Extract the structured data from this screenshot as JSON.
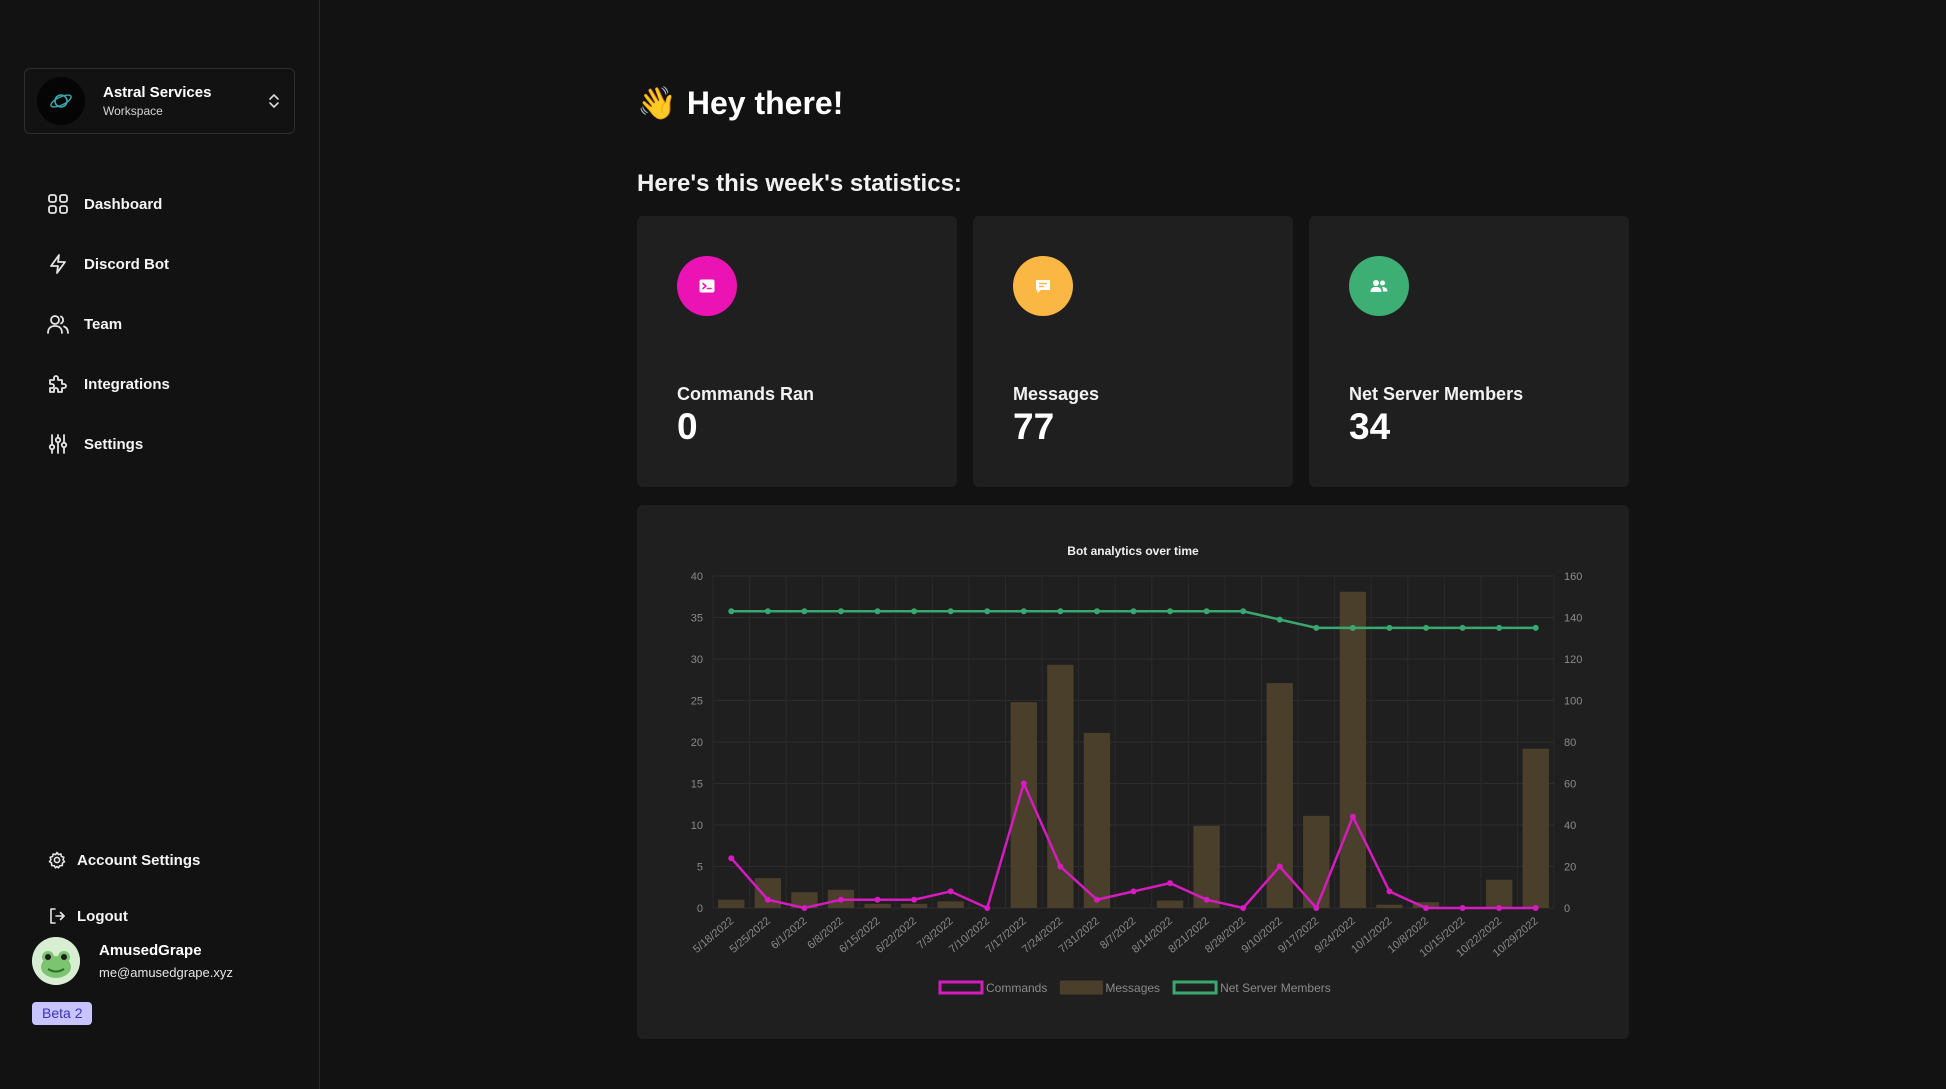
{
  "workspace": {
    "name": "Astral Services",
    "subtitle": "Workspace",
    "logo_icon": "planet-icon",
    "switch_icon": "chevron-updown-icon"
  },
  "nav": [
    {
      "label": "Dashboard",
      "icon": "grid-icon"
    },
    {
      "label": "Discord Bot",
      "icon": "bolt-icon"
    },
    {
      "label": "Team",
      "icon": "users-icon"
    },
    {
      "label": "Integrations",
      "icon": "puzzle-icon"
    },
    {
      "label": "Settings",
      "icon": "sliders-icon"
    }
  ],
  "account": {
    "settings_label": "Account Settings",
    "logout_label": "Logout"
  },
  "user": {
    "name": "AmusedGrape",
    "email": "me@amusedgrape.xyz",
    "badge": "Beta 2"
  },
  "main": {
    "greeting_emoji": "👋",
    "greeting": "Hey there!",
    "subheading": "Here's this week's statistics:"
  },
  "stats": [
    {
      "title": "Commands Ran",
      "value": "0",
      "color": "#ec13b5",
      "icon": "terminal-icon"
    },
    {
      "title": "Messages",
      "value": "77",
      "color": "#fbb744",
      "icon": "message-icon"
    },
    {
      "title": "Net Server Members",
      "value": "34",
      "color": "#3daf74",
      "icon": "members-icon"
    }
  ],
  "colors": {
    "commands": "#d61bbf",
    "messages": "#4a3f2a",
    "members": "#3aa86e"
  },
  "chart_data": {
    "type": "bar",
    "title": "Bot analytics over time",
    "categories": [
      "5/18/2022",
      "5/25/2022",
      "6/1/2022",
      "6/8/2022",
      "6/15/2022",
      "6/22/2022",
      "7/3/2022",
      "7/10/2022",
      "7/17/2022",
      "7/24/2022",
      "7/31/2022",
      "8/7/2022",
      "8/14/2022",
      "8/21/2022",
      "8/28/2022",
      "9/10/2022",
      "9/17/2022",
      "9/24/2022",
      "10/1/2022",
      "10/8/2022",
      "10/15/2022",
      "10/22/2022",
      "10/29/2022"
    ],
    "series": [
      {
        "name": "Commands",
        "type": "line",
        "axis": "left",
        "values": [
          6,
          1,
          0,
          1,
          1,
          1,
          2,
          0,
          15,
          5,
          1,
          2,
          3,
          1,
          0,
          5,
          0,
          11,
          2,
          0,
          0,
          0,
          0
        ]
      },
      {
        "name": "Messages",
        "type": "bar",
        "axis": "left",
        "values": [
          1,
          3.6,
          1.9,
          2.2,
          0.5,
          0.5,
          0.8,
          0,
          24.8,
          29.3,
          21.1,
          0,
          0.9,
          9.9,
          0,
          27.1,
          11.1,
          38.1,
          0.4,
          0.7,
          0,
          3.4,
          19.2
        ]
      },
      {
        "name": "Net Server Members",
        "type": "line",
        "axis": "right",
        "values": [
          143,
          143,
          143,
          143,
          143,
          143,
          143,
          143,
          143,
          143,
          143,
          143,
          143,
          143,
          143,
          139,
          135,
          135,
          135,
          135,
          135,
          135,
          135
        ]
      }
    ],
    "y_left": {
      "min": 0,
      "max": 40,
      "ticks": [
        "0",
        "5",
        "10",
        "15",
        "20",
        "25",
        "30",
        "35",
        "40"
      ]
    },
    "y_right": {
      "min": 0,
      "max": 160,
      "ticks": [
        "0",
        "20",
        "40",
        "60",
        "80",
        "100",
        "120",
        "140",
        "160"
      ]
    },
    "grid": true,
    "legend_position": "bottom"
  }
}
